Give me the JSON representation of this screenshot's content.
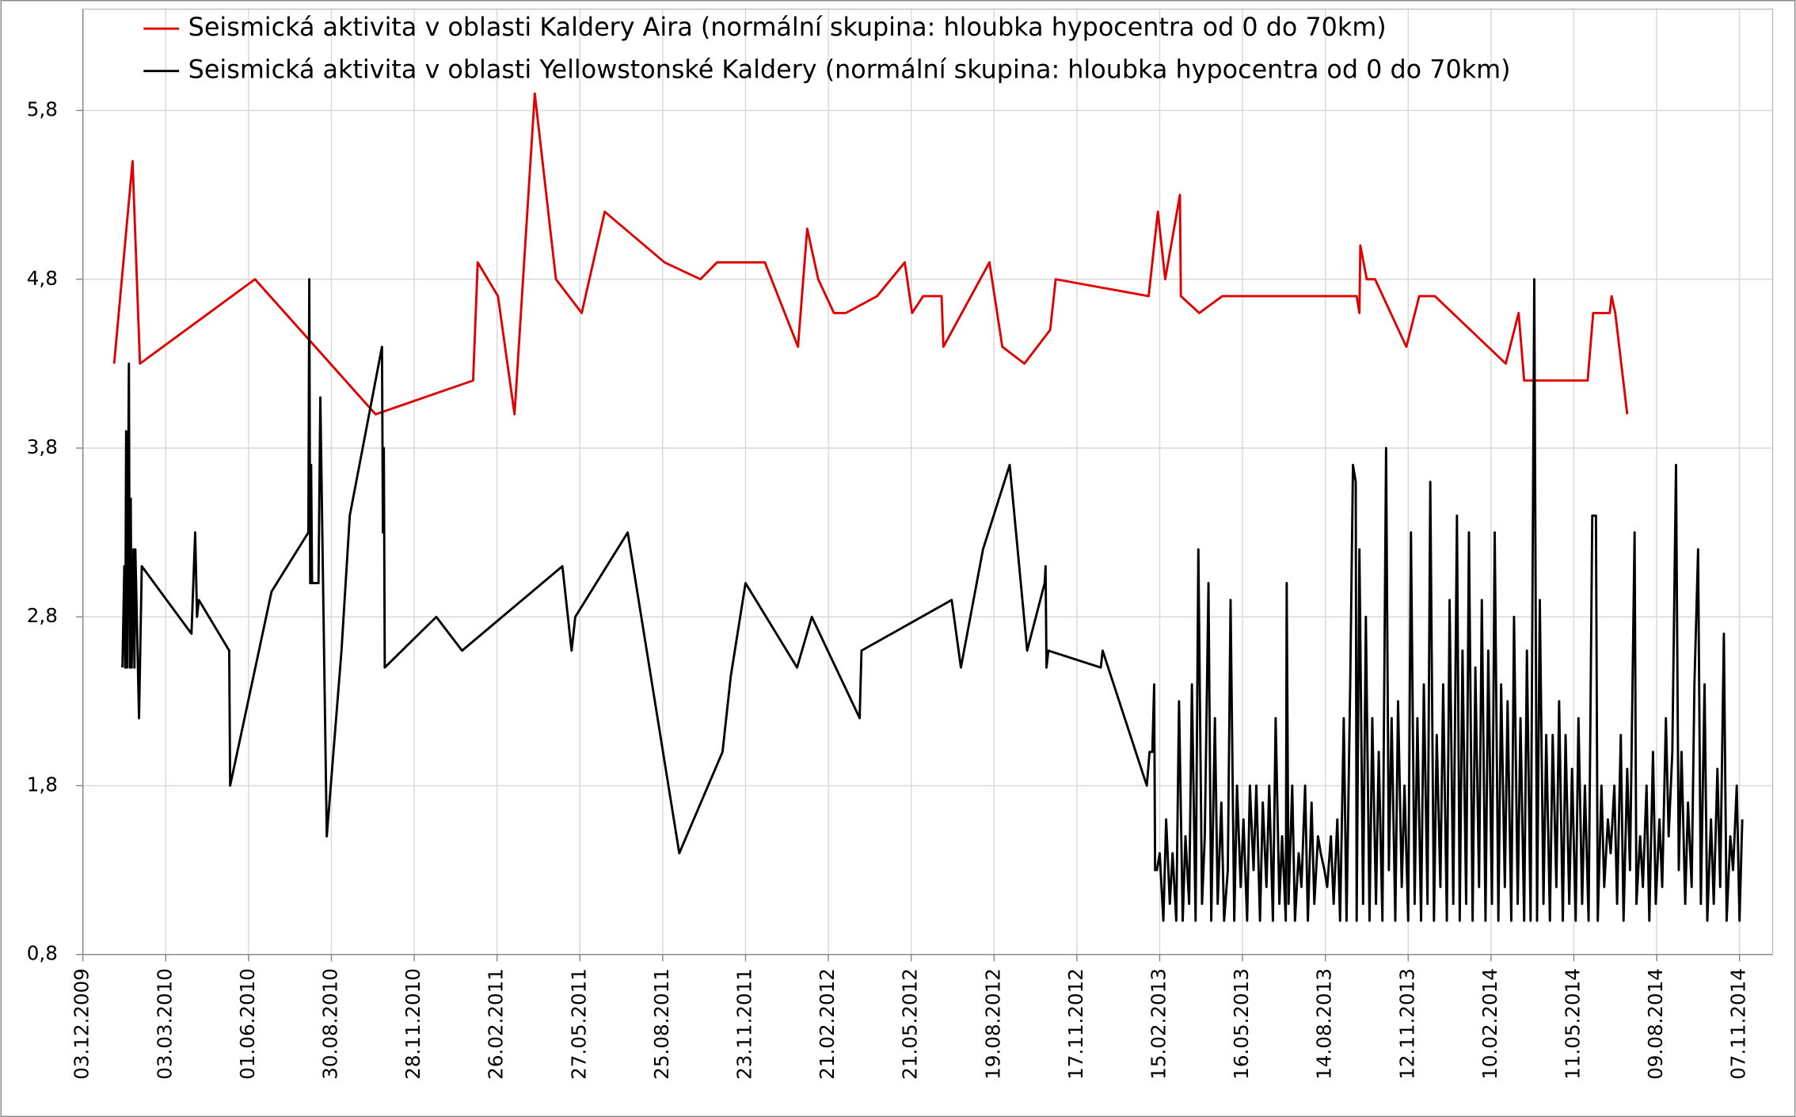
{
  "chart_data": {
    "type": "line",
    "legend": "top",
    "grid": true,
    "xlim": [
      "2009-12-03",
      "2014-12-13"
    ],
    "ylim": [
      0.8,
      6.4
    ],
    "yticks": [
      {
        "value": 0.8,
        "label": "0,8"
      },
      {
        "value": 1.8,
        "label": "1,8"
      },
      {
        "value": 2.8,
        "label": "2,8"
      },
      {
        "value": 3.8,
        "label": "3,8"
      },
      {
        "value": 4.8,
        "label": "4,8"
      },
      {
        "value": 5.8,
        "label": "5,8"
      }
    ],
    "xticks": [
      {
        "value": "2009-12-03",
        "label": "03.12.2009"
      },
      {
        "value": "2010-03-03",
        "label": "03.03.2010"
      },
      {
        "value": "2010-06-01",
        "label": "01.06.2010"
      },
      {
        "value": "2010-08-30",
        "label": "30.08.2010"
      },
      {
        "value": "2010-11-28",
        "label": "28.11.2010"
      },
      {
        "value": "2011-02-26",
        "label": "26.02.2011"
      },
      {
        "value": "2011-05-27",
        "label": "27.05.2011"
      },
      {
        "value": "2011-08-25",
        "label": "25.08.2011"
      },
      {
        "value": "2011-11-23",
        "label": "23.11.2011"
      },
      {
        "value": "2012-02-21",
        "label": "21.02.2012"
      },
      {
        "value": "2012-05-21",
        "label": "21.05.2012"
      },
      {
        "value": "2012-08-19",
        "label": "19.08.2012"
      },
      {
        "value": "2012-11-17",
        "label": "17.11.2012"
      },
      {
        "value": "2013-02-15",
        "label": "15.02.2013"
      },
      {
        "value": "2013-05-16",
        "label": "16.05.2013"
      },
      {
        "value": "2013-08-14",
        "label": "14.08.2013"
      },
      {
        "value": "2013-11-12",
        "label": "12.11.2013"
      },
      {
        "value": "2014-02-10",
        "label": "10.02.2014"
      },
      {
        "value": "2014-05-11",
        "label": "11.05.2014"
      },
      {
        "value": "2014-08-09",
        "label": "09.08.2014"
      },
      {
        "value": "2014-11-07",
        "label": "07.11.2014"
      }
    ],
    "series": [
      {
        "name": "Seismická aktivita v oblasti Kaldery Aira (normální skupina: hloubka hypocentra od 0 do 70km)",
        "color": "#e00000",
        "x": [
          "2010-01-06",
          "2010-01-26",
          "2010-02-03",
          "2010-06-08",
          "2010-10-17",
          "2011-01-31",
          "2011-02-05",
          "2011-02-27",
          "2011-03-17",
          "2011-04-08",
          "2011-05-01",
          "2011-05-29",
          "2011-06-23",
          "2011-08-27",
          "2011-10-05",
          "2011-10-23",
          "2011-12-14",
          "2012-01-19",
          "2012-01-29",
          "2012-02-10",
          "2012-02-27",
          "2012-03-11",
          "2012-04-14",
          "2012-05-14",
          "2012-05-22",
          "2012-06-03",
          "2012-06-23",
          "2012-06-25",
          "2012-08-14",
          "2012-08-28",
          "2012-09-21",
          "2012-10-19",
          "2012-10-25",
          "2013-02-03",
          "2013-02-13",
          "2013-02-21",
          "2013-03-09",
          "2013-03-10",
          "2013-03-30",
          "2013-04-24",
          "2013-09-17",
          "2013-09-20",
          "2013-09-21",
          "2013-09-28",
          "2013-10-07",
          "2013-11-10",
          "2013-11-24",
          "2013-12-11",
          "2014-02-26",
          "2014-03-12",
          "2014-03-18",
          "2014-05-26",
          "2014-06-01",
          "2014-06-19",
          "2014-06-21",
          "2014-06-25",
          "2014-07-08"
        ],
        "values": [
          4.3,
          5.5,
          4.3,
          4.8,
          4.0,
          4.2,
          4.9,
          4.7,
          4.0,
          5.9,
          4.8,
          4.6,
          5.2,
          4.9,
          4.8,
          4.9,
          4.9,
          4.4,
          5.1,
          4.8,
          4.6,
          4.6,
          4.7,
          4.9,
          4.6,
          4.7,
          4.7,
          4.4,
          4.9,
          4.4,
          4.3,
          4.5,
          4.8,
          4.7,
          5.2,
          4.8,
          5.3,
          4.7,
          4.6,
          4.7,
          4.7,
          4.6,
          5.0,
          4.8,
          4.8,
          4.4,
          4.7,
          4.7,
          4.3,
          4.6,
          4.2,
          4.2,
          4.6,
          4.6,
          4.7,
          4.6,
          4.0
        ]
      },
      {
        "name": "Seismická aktivita v oblasti Yellowstonské Kaldery (normální skupina: hloubka hypocentra od 0 do 70km)",
        "color": "#000000",
        "x": [
          "2010-01-15",
          "2010-01-17",
          "2010-01-18",
          "2010-01-19",
          "2010-01-20",
          "2010-01-22",
          "2010-01-23",
          "2010-01-24",
          "2010-01-25",
          "2010-01-27",
          "2010-01-28",
          "2010-01-29",
          "2010-02-02",
          "2010-02-05",
          "2010-03-31",
          "2010-04-04",
          "2010-04-06",
          "2010-04-08",
          "2010-05-11",
          "2010-05-12",
          "2010-06-26",
          "2010-08-05",
          "2010-08-06",
          "2010-08-07",
          "2010-08-08",
          "2010-08-09",
          "2010-08-16",
          "2010-08-18",
          "2010-08-25",
          "2010-09-10",
          "2010-09-19",
          "2010-10-24",
          "2010-10-25",
          "2010-10-26",
          "2010-10-27",
          "2010-12-22",
          "2011-01-19",
          "2011-05-08",
          "2011-05-18",
          "2011-05-22",
          "2011-07-18",
          "2011-09-12",
          "2011-10-29",
          "2011-11-07",
          "2011-11-23",
          "2012-01-18",
          "2012-02-03",
          "2012-03-26",
          "2012-03-28",
          "2012-07-04",
          "2012-07-14",
          "2012-08-07",
          "2012-09-05",
          "2012-09-24",
          "2012-10-13",
          "2012-10-14",
          "2012-10-15",
          "2012-10-17",
          "2012-12-13",
          "2012-12-15",
          "2013-02-01",
          "2013-02-04",
          "2013-02-07",
          "2013-02-09",
          "2013-02-10",
          "2013-02-12",
          "2013-02-15",
          "2013-02-19",
          "2013-02-22",
          "2013-02-26",
          "2013-03-01",
          "2013-03-05",
          "2013-03-08",
          "2013-03-12",
          "2013-03-15",
          "2013-03-19",
          "2013-03-22",
          "2013-03-26",
          "2013-03-29",
          "2013-04-02",
          "2013-04-05",
          "2013-04-09",
          "2013-04-12",
          "2013-04-16",
          "2013-04-19",
          "2013-04-23",
          "2013-04-26",
          "2013-04-30",
          "2013-05-03",
          "2013-05-07",
          "2013-05-10",
          "2013-05-14",
          "2013-05-17",
          "2013-05-21",
          "2013-05-24",
          "2013-05-28",
          "2013-05-31",
          "2013-06-04",
          "2013-06-07",
          "2013-06-11",
          "2013-06-14",
          "2013-06-18",
          "2013-06-21",
          "2013-06-25",
          "2013-06-28",
          "2013-07-02",
          "2013-07-03",
          "2013-07-05",
          "2013-07-09",
          "2013-07-12",
          "2013-07-16",
          "2013-07-19",
          "2013-07-23",
          "2013-07-26",
          "2013-07-30",
          "2013-08-02",
          "2013-08-06",
          "2013-08-09",
          "2013-08-13",
          "2013-08-16",
          "2013-08-20",
          "2013-08-23",
          "2013-08-27",
          "2013-08-30",
          "2013-09-03",
          "2013-09-06",
          "2013-09-10",
          "2013-09-13",
          "2013-09-16",
          "2013-09-17",
          "2013-09-20",
          "2013-09-24",
          "2013-09-27",
          "2013-10-01",
          "2013-10-04",
          "2013-10-08",
          "2013-10-11",
          "2013-10-15",
          "2013-10-19",
          "2013-10-22",
          "2013-10-25",
          "2013-10-29",
          "2013-11-01",
          "2013-11-05",
          "2013-11-08",
          "2013-11-12",
          "2013-11-15",
          "2013-11-19",
          "2013-11-22",
          "2013-11-26",
          "2013-11-29",
          "2013-12-03",
          "2013-12-06",
          "2013-12-10",
          "2013-12-13",
          "2013-12-17",
          "2013-12-20",
          "2013-12-24",
          "2013-12-27",
          "2013-12-31",
          "2014-01-04",
          "2014-01-07",
          "2014-01-10",
          "2014-01-14",
          "2014-01-17",
          "2014-01-21",
          "2014-01-24",
          "2014-01-28",
          "2014-01-31",
          "2014-02-04",
          "2014-02-07",
          "2014-02-11",
          "2014-02-14",
          "2014-02-18",
          "2014-02-21",
          "2014-02-25",
          "2014-02-28",
          "2014-03-04",
          "2014-03-07",
          "2014-03-11",
          "2014-03-14",
          "2014-03-18",
          "2014-03-21",
          "2014-03-25",
          "2014-03-29",
          "2014-04-01",
          "2014-04-04",
          "2014-04-08",
          "2014-04-11",
          "2014-04-15",
          "2014-04-18",
          "2014-04-22",
          "2014-04-25",
          "2014-04-29",
          "2014-05-02",
          "2014-05-06",
          "2014-05-09",
          "2014-05-13",
          "2014-05-16",
          "2014-05-20",
          "2014-05-23",
          "2014-05-27",
          "2014-05-31",
          "2014-06-04",
          "2014-06-06",
          "2014-06-10",
          "2014-06-13",
          "2014-06-17",
          "2014-06-20",
          "2014-06-24",
          "2014-06-27",
          "2014-07-01",
          "2014-07-04",
          "2014-07-08",
          "2014-07-11",
          "2014-07-16",
          "2014-07-18",
          "2014-07-22",
          "2014-07-25",
          "2014-07-29",
          "2014-08-01",
          "2014-08-05",
          "2014-08-08",
          "2014-08-12",
          "2014-08-15",
          "2014-08-19",
          "2014-08-22",
          "2014-08-26",
          "2014-08-30",
          "2014-09-02",
          "2014-09-05",
          "2014-09-09",
          "2014-09-12",
          "2014-09-16",
          "2014-09-19",
          "2014-09-23",
          "2014-09-26",
          "2014-09-30",
          "2014-10-03",
          "2014-10-07",
          "2014-10-10",
          "2014-10-14",
          "2014-10-17",
          "2014-10-21",
          "2014-10-24",
          "2014-10-28",
          "2014-10-31",
          "2014-11-04",
          "2014-11-07",
          "2014-11-10"
        ],
        "values": [
          2.5,
          3.1,
          2.5,
          3.9,
          2.5,
          4.3,
          2.5,
          3.5,
          2.5,
          3.2,
          2.5,
          3.2,
          2.2,
          3.1,
          2.7,
          3.3,
          2.8,
          2.9,
          2.6,
          1.8,
          2.95,
          3.3,
          4.8,
          3.0,
          3.7,
          3.0,
          3.0,
          4.1,
          1.5,
          2.6,
          3.4,
          4.4,
          3.3,
          3.8,
          2.5,
          2.8,
          2.6,
          3.1,
          2.6,
          2.8,
          3.3,
          1.4,
          2.0,
          2.45,
          3.0,
          2.5,
          2.8,
          2.2,
          2.6,
          2.9,
          2.5,
          3.2,
          3.7,
          2.6,
          3.0,
          3.1,
          2.5,
          2.6,
          2.5,
          2.6,
          1.8,
          2.0,
          2.0,
          2.4,
          1.3,
          1.3,
          1.4,
          1.0,
          1.6,
          1.1,
          1.4,
          1.0,
          2.3,
          1.0,
          1.5,
          1.1,
          2.4,
          1.0,
          3.2,
          1.1,
          1.5,
          3.0,
          1.0,
          2.2,
          1.1,
          1.7,
          1.0,
          1.3,
          2.9,
          1.0,
          1.8,
          1.2,
          1.6,
          1.0,
          1.8,
          1.3,
          1.8,
          1.0,
          1.7,
          1.2,
          1.8,
          1.0,
          2.2,
          1.1,
          1.5,
          1.0,
          3.0,
          1.1,
          1.8,
          1.0,
          1.4,
          1.2,
          1.8,
          1.0,
          1.7,
          1.1,
          1.5,
          1.4,
          1.3,
          1.2,
          1.5,
          1.1,
          1.6,
          1.0,
          2.2,
          1.0,
          2.4,
          3.7,
          3.6,
          1.0,
          3.2,
          1.1,
          2.8,
          1.0,
          2.2,
          1.1,
          2.0,
          1.0,
          3.8,
          1.3,
          2.2,
          1.0,
          2.3,
          1.2,
          1.8,
          1.0,
          3.3,
          1.1,
          2.2,
          1.0,
          2.4,
          1.1,
          3.6,
          1.0,
          2.1,
          1.2,
          2.4,
          1.0,
          2.9,
          1.1,
          3.4,
          1.0,
          2.6,
          1.1,
          3.3,
          1.0,
          2.5,
          1.2,
          2.9,
          1.0,
          2.6,
          1.1,
          3.3,
          1.0,
          2.4,
          1.2,
          2.3,
          1.0,
          2.8,
          1.1,
          2.2,
          1.0,
          2.6,
          1.0,
          4.8,
          1.0,
          2.9,
          1.1,
          2.1,
          1.0,
          2.1,
          1.2,
          2.3,
          1.0,
          2.1,
          1.1,
          1.9,
          1.0,
          2.2,
          1.1,
          1.8,
          1.0,
          3.4,
          3.4,
          1.0,
          1.8,
          1.2,
          1.6,
          1.4,
          1.8,
          1.1,
          2.1,
          1.0,
          1.9,
          1.3,
          3.3,
          1.1,
          1.5,
          1.2,
          1.8,
          1.0,
          2.0,
          1.1,
          1.6,
          1.2,
          2.2,
          1.5,
          2.0,
          3.7,
          1.3,
          2.0,
          1.1,
          1.7,
          1.2,
          2.4,
          3.2,
          1.1,
          2.4,
          1.0,
          1.6,
          1.1,
          1.9,
          1.2,
          2.7,
          1.0,
          1.5,
          1.3,
          1.8,
          1.0,
          1.6
        ]
      }
    ]
  }
}
